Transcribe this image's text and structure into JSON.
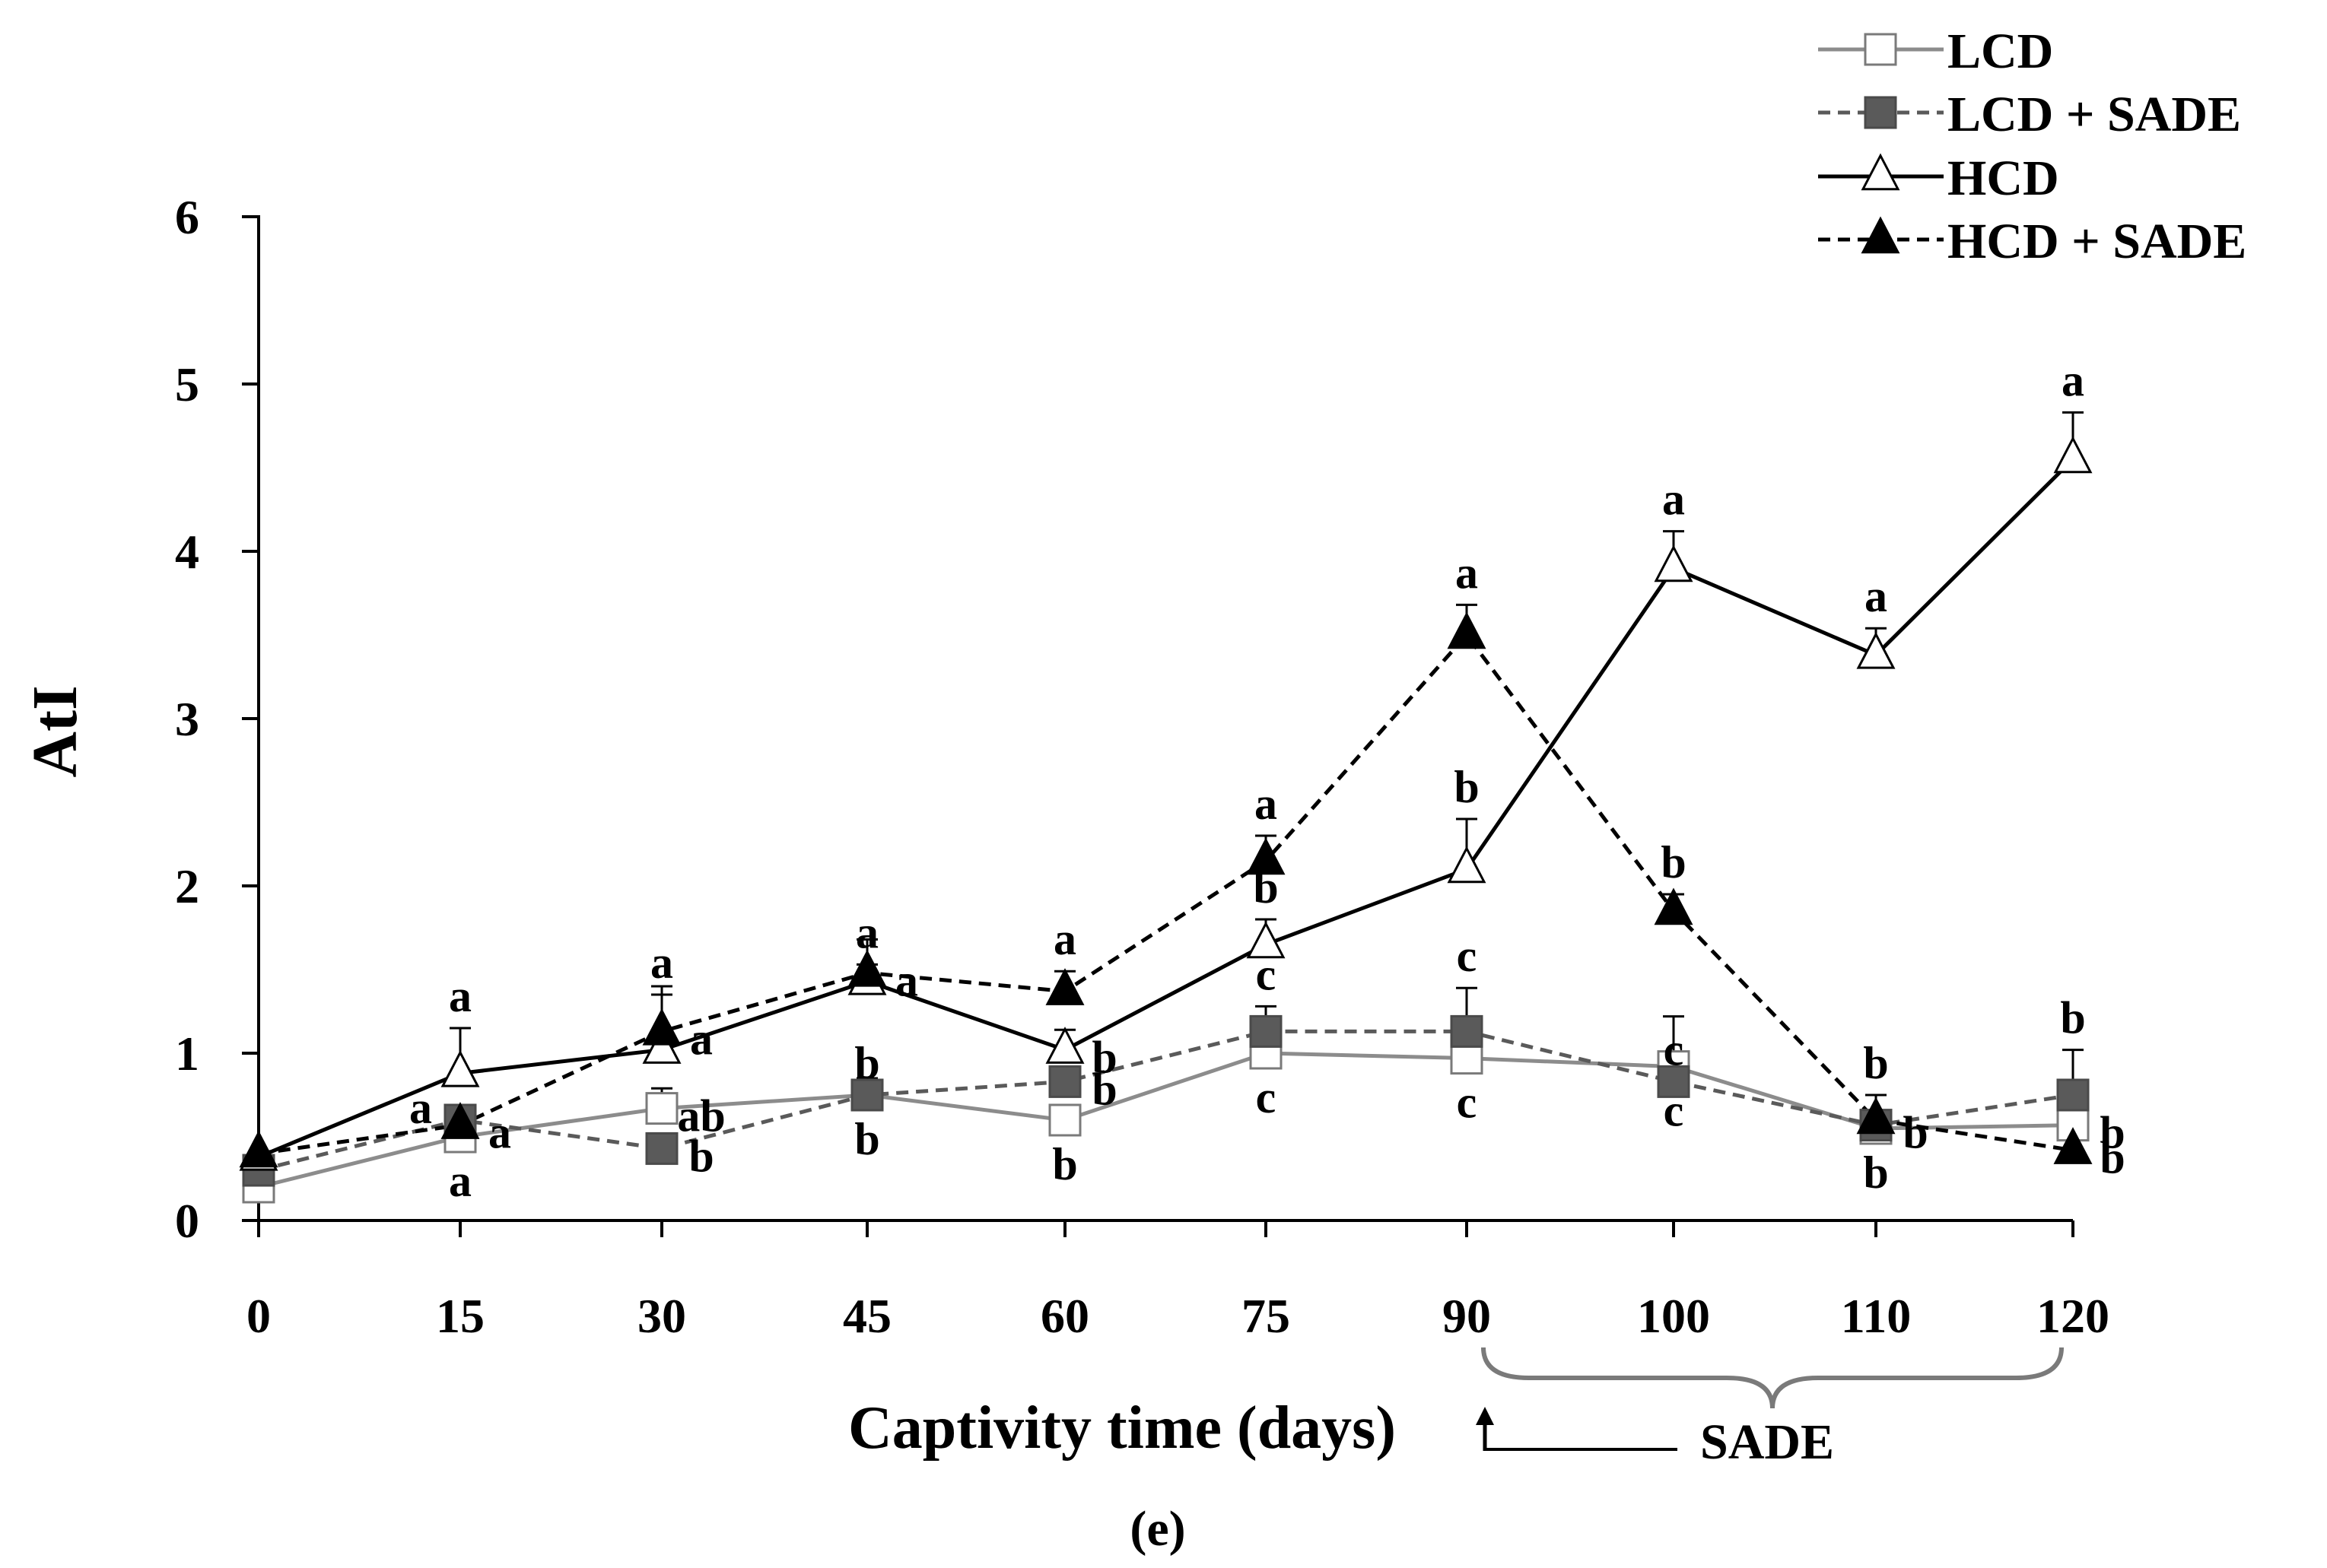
{
  "chart_data": {
    "type": "line",
    "xlabel": "Captivity time (days)",
    "ylabel": "AtI",
    "panel_label": "(e)",
    "x": [
      0,
      15,
      30,
      45,
      60,
      75,
      90,
      100,
      110,
      120
    ],
    "x_tick_labels": [
      "0",
      "15",
      "30",
      "45",
      "60",
      "75",
      "90",
      "100",
      "110",
      "120"
    ],
    "ylim": [
      0,
      6
    ],
    "y_ticks": [
      0,
      1,
      2,
      3,
      4,
      5,
      6
    ],
    "legend_position": "top-right",
    "annotation": {
      "label": "SADE",
      "start_day": 90,
      "span_days": [
        90,
        120
      ]
    },
    "series": [
      {
        "name": "LCD",
        "color": "#8c8c8c",
        "line": "solid",
        "marker": "square-open",
        "values": [
          0.2,
          0.5,
          0.67,
          0.75,
          0.6,
          1.0,
          0.97,
          0.92,
          0.55,
          0.57
        ],
        "error": [
          0,
          0,
          0.12,
          0.1,
          0,
          0.12,
          0,
          0.3,
          0,
          0
        ],
        "labels": [
          "",
          "a",
          "ab",
          "b",
          "b",
          "c",
          "c",
          "c",
          "b",
          "b"
        ]
      },
      {
        "name": "LCD + SADE",
        "color": "#5a5a5a",
        "line": "dashed",
        "marker": "square-filled",
        "values": [
          0.3,
          0.6,
          0.43,
          0.75,
          0.83,
          1.13,
          1.13,
          0.83,
          0.57,
          0.75
        ],
        "error": [
          0,
          0,
          0,
          0,
          0,
          0.15,
          0.26,
          0,
          0,
          0.27
        ],
        "labels": [
          "",
          "a",
          "b",
          "b",
          "b",
          "c",
          "c",
          "c",
          "b",
          "b"
        ]
      },
      {
        "name": "HCD",
        "color": "#000000",
        "line": "solid",
        "marker": "triangle-open",
        "values": [
          0.38,
          0.88,
          1.02,
          1.43,
          1.02,
          1.65,
          2.1,
          3.9,
          3.38,
          4.55
        ],
        "error": [
          0,
          0.27,
          0.33,
          0.1,
          0.12,
          0.15,
          0.3,
          0.22,
          0.16,
          0.28
        ],
        "labels": [
          "",
          "a",
          "a",
          "a",
          "b",
          "b",
          "b",
          "a",
          "a",
          "a"
        ]
      },
      {
        "name": "HCD + SADE",
        "color": "#000000",
        "line": "dashed",
        "marker": "triangle-filled",
        "values": [
          0.4,
          0.57,
          1.13,
          1.48,
          1.37,
          2.15,
          3.5,
          1.85,
          0.6,
          0.42
        ],
        "error": [
          0,
          0,
          0.27,
          0.2,
          0.12,
          0.15,
          0.18,
          0.1,
          0.15,
          0
        ],
        "labels": [
          "",
          "a",
          "a",
          "a",
          "a",
          "a",
          "a",
          "b",
          "b",
          "b"
        ]
      }
    ]
  }
}
